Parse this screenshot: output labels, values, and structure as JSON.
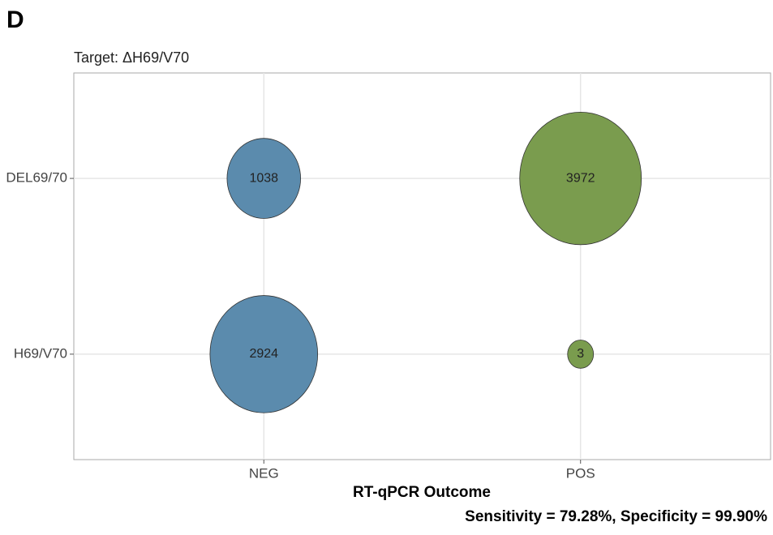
{
  "chart_data": {
    "type": "bubble",
    "panel_label": "D",
    "subtitle": "Target: ΔH69/V70",
    "x_label": "RT-qPCR Outcome",
    "caption": "Sensitivity = 79.28%, Specificity = 99.90%",
    "x_categories": [
      "NEG",
      "POS"
    ],
    "y_categories": [
      "H69/V70",
      "DEL69/70"
    ],
    "values": [
      [
        2924,
        3
      ],
      [
        1038,
        3972
      ]
    ],
    "colors": [
      "#5b8bad",
      "#7a9c4e"
    ],
    "grid": true
  }
}
